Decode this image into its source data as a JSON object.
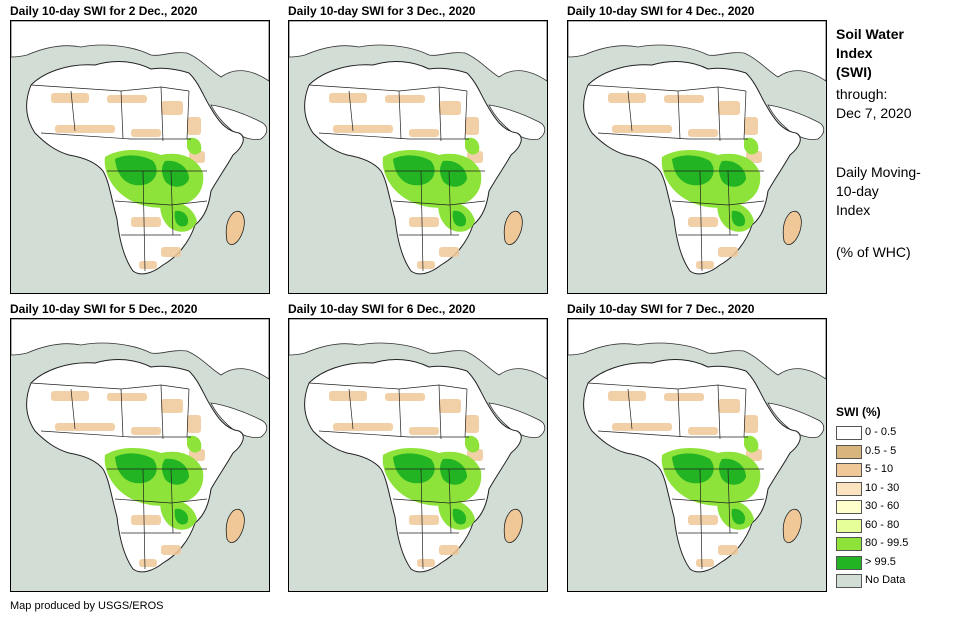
{
  "panels": [
    {
      "title": "Daily 10-day SWI for 2 Dec., 2020"
    },
    {
      "title": "Daily 10-day SWI for 3 Dec., 2020"
    },
    {
      "title": "Daily 10-day SWI for 4 Dec., 2020"
    },
    {
      "title": "Daily 10-day SWI for 5 Dec., 2020"
    },
    {
      "title": "Daily 10-day SWI for 6 Dec., 2020"
    },
    {
      "title": "Daily 10-day SWI for 7 Dec., 2020"
    }
  ],
  "side": {
    "title_line1": "Soil Water",
    "title_line2": "Index",
    "title_line3": "(SWI)",
    "through_label": "through:",
    "through_date": "Dec 7, 2020",
    "desc_line1": "Daily Moving-",
    "desc_line2": "10-day",
    "desc_line3": "Index",
    "unit": "(% of WHC)"
  },
  "legend": {
    "title": "SWI (%)",
    "items": [
      {
        "label": "0 - 0.5",
        "color": "#ffffff"
      },
      {
        "label": "0.5 - 5",
        "color": "#d7b57c"
      },
      {
        "label": "5 - 10",
        "color": "#f0c898"
      },
      {
        "label": "10 - 30",
        "color": "#fbe3c0"
      },
      {
        "label": "30 - 60",
        "color": "#ffffcc"
      },
      {
        "label": "60 - 80",
        "color": "#e6ff99"
      },
      {
        "label": "80 - 99.5",
        "color": "#8ee33a"
      },
      {
        "label": "> 99.5",
        "color": "#22b422"
      },
      {
        "label": "No Data",
        "color": "#d2ddd6"
      }
    ]
  },
  "colors": {
    "ocean": "#d2ddd6",
    "land": "#ffffff",
    "dry": "#f0c898",
    "wet": "#8ee33a",
    "saturated": "#22b422"
  },
  "footer": "Map produced by USGS/EROS"
}
